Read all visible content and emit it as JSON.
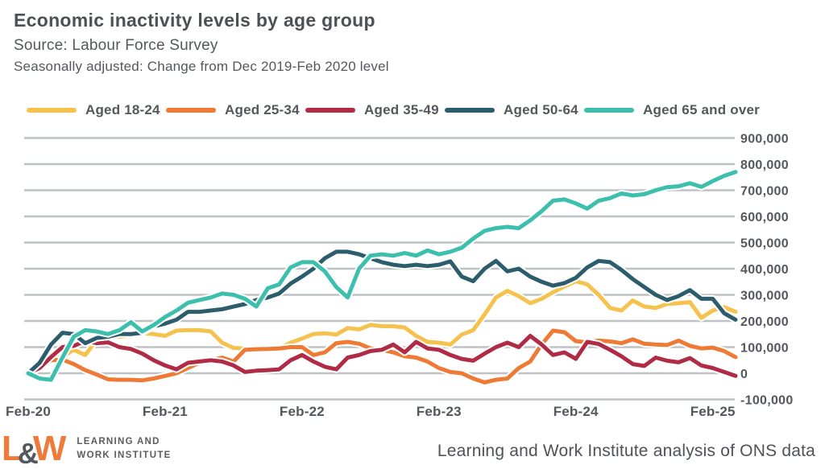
{
  "header": {
    "title": "Economic inactivity levels by age group",
    "source": "Source: Labour Force Survey",
    "subtitle": "Seasonally adjusted: Change from Dec 2019-Feb 2020 level"
  },
  "footer": {
    "logo": {
      "l": "L",
      "amp": "&",
      "w": "W",
      "line1": "LEARNING AND",
      "line2": "WORK INSTITUTE"
    },
    "attribution": "Learning and Work Institute analysis of ONS data"
  },
  "colors": {
    "text": "#54575B",
    "grid": "#BEC2C4",
    "logo_orange": "#EF7B3B"
  },
  "chart_data": {
    "type": "line",
    "title": "Economic inactivity levels by age group",
    "subtitle": "Seasonally adjusted: Change from Dec 2019-Feb 2020 level",
    "grid": "horizontal",
    "legend_position": "top",
    "unit": "people, values stored in thousands (multiply by 1,000)",
    "ylim_thousands": [
      -100,
      900
    ],
    "y_ticks": [
      {
        "value_thousands": 900,
        "label": "900,000"
      },
      {
        "value_thousands": 800,
        "label": "800,000"
      },
      {
        "value_thousands": 700,
        "label": "700,000"
      },
      {
        "value_thousands": 600,
        "label": "600,000"
      },
      {
        "value_thousands": 500,
        "label": "500,000"
      },
      {
        "value_thousands": 400,
        "label": "400,000"
      },
      {
        "value_thousands": 300,
        "label": "300,000"
      },
      {
        "value_thousands": 200,
        "label": "200,000"
      },
      {
        "value_thousands": 100,
        "label": "100,000"
      },
      {
        "value_thousands": 0,
        "label": "0"
      },
      {
        "value_thousands": -100,
        "label": "-100,000"
      }
    ],
    "x_ticks": [
      {
        "label": "Feb-20",
        "month_index": 0
      },
      {
        "label": "Feb-21",
        "month_index": 12
      },
      {
        "label": "Feb-22",
        "month_index": 24
      },
      {
        "label": "Feb-23",
        "month_index": 36
      },
      {
        "label": "Feb-24",
        "month_index": 48
      },
      {
        "label": "Feb-25",
        "month_index": 60
      }
    ],
    "months": [
      "Feb-20",
      "Mar-20",
      "Apr-20",
      "May-20",
      "Jun-20",
      "Jul-20",
      "Aug-20",
      "Sep-20",
      "Oct-20",
      "Nov-20",
      "Dec-20",
      "Jan-21",
      "Feb-21",
      "Mar-21",
      "Apr-21",
      "May-21",
      "Jun-21",
      "Jul-21",
      "Aug-21",
      "Sep-21",
      "Oct-21",
      "Nov-21",
      "Dec-21",
      "Jan-22",
      "Feb-22",
      "Mar-22",
      "Apr-22",
      "May-22",
      "Jun-22",
      "Jul-22",
      "Aug-22",
      "Sep-22",
      "Oct-22",
      "Nov-22",
      "Dec-22",
      "Jan-23",
      "Feb-23",
      "Mar-23",
      "Apr-23",
      "May-23",
      "Jun-23",
      "Jul-23",
      "Aug-23",
      "Sep-23",
      "Oct-23",
      "Nov-23",
      "Dec-23",
      "Jan-24",
      "Feb-24",
      "Mar-24",
      "Apr-24",
      "May-24",
      "Jun-24",
      "Jul-24",
      "Aug-24",
      "Sep-24",
      "Oct-24",
      "Nov-24",
      "Dec-24",
      "Jan-25",
      "Feb-25",
      "Mar-25",
      "Apr-25"
    ],
    "series": [
      {
        "name": "Aged 18-24",
        "color": "#F5C24D",
        "values_thousands": [
          0,
          30,
          55,
          63,
          90,
          70,
          127,
          138,
          140,
          145,
          153,
          150,
          143,
          163,
          165,
          165,
          160,
          117,
          97,
          95,
          90,
          92,
          95,
          117,
          133,
          150,
          153,
          148,
          173,
          168,
          185,
          180,
          180,
          175,
          143,
          120,
          117,
          110,
          148,
          165,
          225,
          290,
          315,
          295,
          268,
          285,
          310,
          332,
          352,
          340,
          300,
          250,
          240,
          278,
          255,
          250,
          265,
          268,
          272,
          212,
          240,
          253,
          235
        ]
      },
      {
        "name": "Aged 25-34",
        "color": "#EE7A35",
        "values_thousands": [
          0,
          25,
          50,
          52,
          35,
          12,
          -5,
          -23,
          -25,
          -25,
          -27,
          -20,
          -10,
          0,
          20,
          40,
          50,
          60,
          45,
          90,
          92,
          93,
          95,
          100,
          100,
          70,
          80,
          115,
          120,
          113,
          95,
          90,
          80,
          65,
          60,
          45,
          20,
          5,
          0,
          -20,
          -35,
          -25,
          -20,
          20,
          45,
          110,
          163,
          157,
          123,
          118,
          125,
          122,
          115,
          130,
          113,
          110,
          108,
          125,
          105,
          95,
          98,
          85,
          62
        ]
      },
      {
        "name": "Aged 35-49",
        "color": "#B02B45",
        "values_thousands": [
          0,
          20,
          62,
          100,
          105,
          123,
          115,
          118,
          100,
          93,
          75,
          50,
          30,
          15,
          40,
          45,
          50,
          45,
          30,
          5,
          10,
          12,
          15,
          50,
          70,
          45,
          25,
          15,
          60,
          70,
          85,
          90,
          110,
          80,
          120,
          95,
          90,
          70,
          55,
          48,
          75,
          100,
          117,
          100,
          143,
          110,
          70,
          80,
          55,
          120,
          112,
          90,
          65,
          35,
          28,
          60,
          48,
          42,
          58,
          30,
          20,
          5,
          -10
        ]
      },
      {
        "name": "Aged 50-64",
        "color": "#2C5D6C",
        "values_thousands": [
          0,
          40,
          110,
          155,
          150,
          115,
          135,
          140,
          150,
          150,
          155,
          180,
          190,
          205,
          235,
          235,
          240,
          245,
          255,
          265,
          280,
          290,
          305,
          343,
          370,
          400,
          440,
          465,
          465,
          455,
          440,
          425,
          415,
          410,
          415,
          410,
          415,
          428,
          370,
          352,
          400,
          430,
          390,
          400,
          370,
          350,
          335,
          345,
          365,
          405,
          430,
          425,
          395,
          360,
          330,
          300,
          280,
          295,
          318,
          285,
          285,
          230,
          205
        ]
      },
      {
        "name": "Aged 65 and over",
        "color": "#3DBFAD",
        "values_thousands": [
          0,
          -20,
          -25,
          60,
          140,
          165,
          160,
          150,
          165,
          195,
          160,
          185,
          215,
          240,
          270,
          280,
          290,
          305,
          300,
          285,
          255,
          325,
          340,
          405,
          425,
          425,
          390,
          330,
          290,
          400,
          450,
          455,
          450,
          460,
          450,
          470,
          455,
          465,
          480,
          515,
          545,
          555,
          560,
          555,
          585,
          620,
          660,
          665,
          650,
          630,
          660,
          670,
          688,
          680,
          685,
          700,
          712,
          715,
          727,
          713,
          735,
          755,
          770
        ]
      }
    ]
  }
}
